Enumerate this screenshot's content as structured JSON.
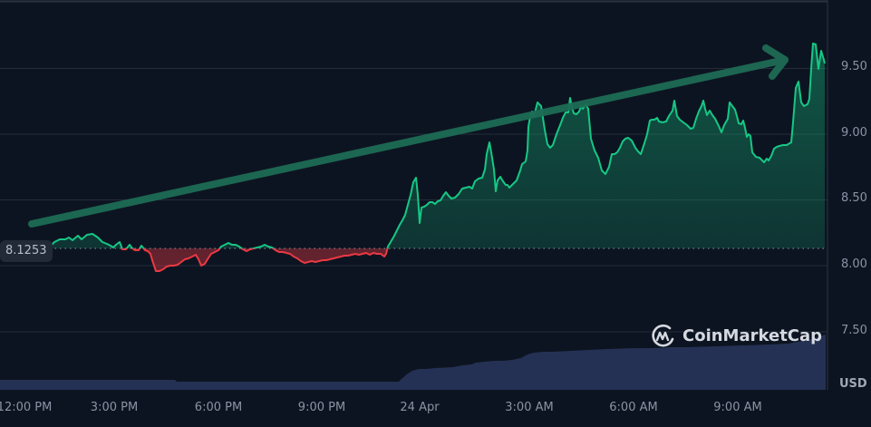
{
  "chart_data": {
    "type": "line",
    "title": "",
    "xlabel": "",
    "ylabel": "USD",
    "currency": "USD",
    "baseline_value": "8.1253",
    "ylim": [
      7.25,
      9.85
    ],
    "y_ticks": [
      "9.50",
      "9.00",
      "8.50",
      "8.00",
      "7.50"
    ],
    "x_ticks": [
      "12:00 PM",
      "3:00 PM",
      "6:00 PM",
      "9:00 PM",
      "24 Apr",
      "3:00 AM",
      "6:00 AM",
      "9:00 AM"
    ],
    "grid": "horizontal",
    "series": [
      {
        "name": "Price",
        "color_above": "#16c784",
        "color_below": "#ea3943",
        "approx_points": [
          [
            "12:00 PM",
            8.15
          ],
          [
            "1:00 PM",
            8.22
          ],
          [
            "2:00 PM",
            8.2
          ],
          [
            "3:00 PM",
            8.13
          ],
          [
            "4:00 PM",
            8.1
          ],
          [
            "4:30 PM",
            7.95
          ],
          [
            "5:30 PM",
            8.05
          ],
          [
            "6:00 PM",
            8.15
          ],
          [
            "7:00 PM",
            8.14
          ],
          [
            "8:00 PM",
            8.08
          ],
          [
            "9:00 PM",
            8.02
          ],
          [
            "10:00 PM",
            8.06
          ],
          [
            "11:00 PM",
            8.1
          ],
          [
            "24 Apr",
            8.35
          ],
          [
            "0:30 AM",
            8.65
          ],
          [
            "1:00 AM",
            8.45
          ],
          [
            "2:00 AM",
            8.6
          ],
          [
            "2:30 AM",
            8.95
          ],
          [
            "3:00 AM",
            8.8
          ],
          [
            "4:00 AM",
            9.25
          ],
          [
            "4:30 AM",
            8.95
          ],
          [
            "5:00 AM",
            9.3
          ],
          [
            "5:30 AM",
            9.2
          ],
          [
            "6:00 AM",
            8.72
          ],
          [
            "6:30 AM",
            8.95
          ],
          [
            "7:00 AM",
            8.8
          ],
          [
            "7:30 AM",
            9.1
          ],
          [
            "8:00 AM",
            9.25
          ],
          [
            "8:30 AM",
            9.0
          ],
          [
            "9:00 AM",
            9.2
          ],
          [
            "9:30 AM",
            9.0
          ],
          [
            "10:00 AM",
            8.8
          ],
          [
            "10:30 AM",
            8.92
          ],
          [
            "11:00 AM",
            9.4
          ],
          [
            "11:30 AM",
            9.65
          ],
          [
            "11:45 AM",
            9.52
          ]
        ]
      },
      {
        "name": "Volume",
        "color": "#2b3a63",
        "trend": "flat until ~22:00 then rising steadily to end"
      }
    ],
    "annotations": [
      {
        "type": "arrow",
        "color": "#1e6b55",
        "from": "12:00 PM @ 8.3",
        "to": "11:30 AM @ 9.57",
        "meaning": "uptrend"
      }
    ]
  },
  "watermark": {
    "brand": "CoinMarketCap"
  }
}
